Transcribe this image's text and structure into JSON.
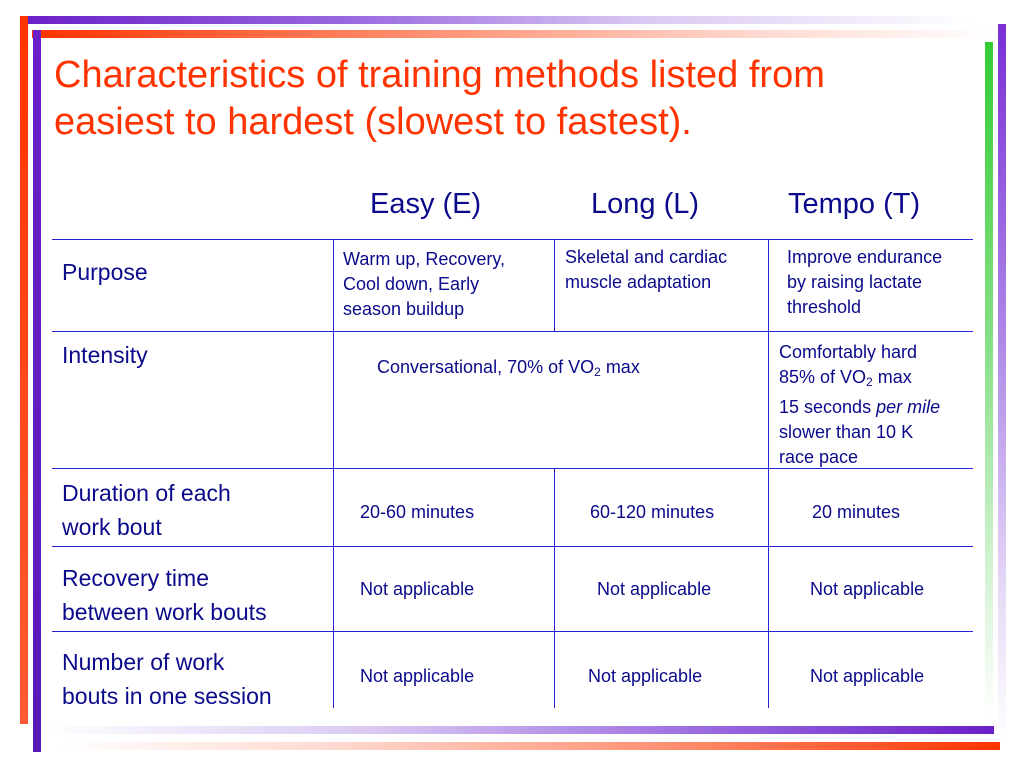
{
  "title": "Characteristics of training methods listed from easiest to hardest (slowest to fastest).",
  "colors": {
    "title": "#ff3300",
    "text": "#0a0a8a",
    "grid": "#2424d6"
  },
  "headers": {
    "easy": "Easy (E)",
    "long": "Long (L)",
    "tempo": "Tempo (T)"
  },
  "rows": {
    "purpose": {
      "label": "Purpose",
      "easy": [
        "Warm up, Recovery,",
        "Cool down, Early",
        "season buildup"
      ],
      "long": [
        "Skeletal and cardiac",
        "muscle adaptation"
      ],
      "tempo": [
        "Improve endurance",
        "by raising lactate",
        "threshold"
      ]
    },
    "intensity": {
      "label": "Intensity",
      "easy_long": {
        "prefix": "Conversational, 70% of VO",
        "sub": "2",
        "suffix": " max"
      },
      "tempo": {
        "line1": "Comfortably hard",
        "line2_prefix": "85% of VO",
        "line2_sub": "2",
        "line2_suffix": " max",
        "line3_prefix": "15 seconds ",
        "line3_em": "per mile",
        "line4": "slower than 10 K",
        "line5": "race pace"
      }
    },
    "duration": {
      "label": [
        "Duration of each",
        "work bout"
      ],
      "easy": "20-60 minutes",
      "long": "60-120 minutes",
      "tempo": "20 minutes"
    },
    "recovery": {
      "label": [
        "Recovery time",
        "between work bouts"
      ],
      "easy": "Not applicable",
      "long": "Not applicable",
      "tempo": "Not applicable"
    },
    "number": {
      "label": [
        "Number of work",
        "bouts in one session"
      ],
      "easy": "Not applicable",
      "long": "Not applicable",
      "tempo": "Not applicable"
    }
  }
}
